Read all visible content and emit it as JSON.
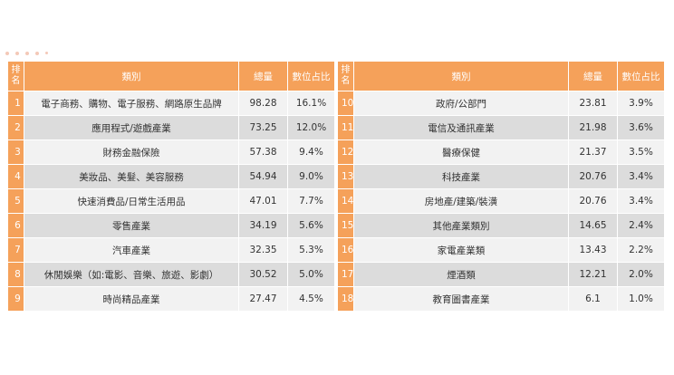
{
  "header": {
    "rank": "排名",
    "category": "類別",
    "total": "總量",
    "share": "數位占比"
  },
  "rows": [
    {
      "rank": "1",
      "category": "電子商務、購物、電子服務、網路原生品牌",
      "total": "98.28",
      "share": "16.1%"
    },
    {
      "rank": "2",
      "category": "應用程式/遊戲產業",
      "total": "73.25",
      "share": "12.0%"
    },
    {
      "rank": "3",
      "category": "財務金融保險",
      "total": "57.38",
      "share": "9.4%"
    },
    {
      "rank": "4",
      "category": "美妝品、美髮、美容服務",
      "total": "54.94",
      "share": "9.0%"
    },
    {
      "rank": "5",
      "category": "快速消費品/日常生活用品",
      "total": "47.01",
      "share": "7.7%"
    },
    {
      "rank": "6",
      "category": "零售產業",
      "total": "34.19",
      "share": "5.6%"
    },
    {
      "rank": "7",
      "category": "汽車產業",
      "total": "32.35",
      "share": "5.3%"
    },
    {
      "rank": "8",
      "category": "休閒娛樂（如:電影、音樂、旅遊、影劇）",
      "total": "30.52",
      "share": "5.0%"
    },
    {
      "rank": "9",
      "category": "時尚精品產業",
      "total": "27.47",
      "share": "4.5%"
    },
    {
      "rank": "10",
      "category": "政府/公部門",
      "total": "23.81",
      "share": "3.9%"
    },
    {
      "rank": "11",
      "category": "電信及通訊產業",
      "total": "21.98",
      "share": "3.6%"
    },
    {
      "rank": "12",
      "category": "醫療保健",
      "total": "21.37",
      "share": "3.5%"
    },
    {
      "rank": "13",
      "category": "科技產業",
      "total": "20.76",
      "share": "3.4%"
    },
    {
      "rank": "14",
      "category": "房地產/建築/裝潢",
      "total": "20.76",
      "share": "3.4%"
    },
    {
      "rank": "15",
      "category": "其他產業類別",
      "total": "14.65",
      "share": "2.4%"
    },
    {
      "rank": "16",
      "category": "家電產業類",
      "total": "13.43",
      "share": "2.2%"
    },
    {
      "rank": "17",
      "category": "煙酒類",
      "total": "12.21",
      "share": "2.0%"
    },
    {
      "rank": "18",
      "category": "教育圖書產業",
      "total": "6.1",
      "share": "1.0%"
    }
  ]
}
